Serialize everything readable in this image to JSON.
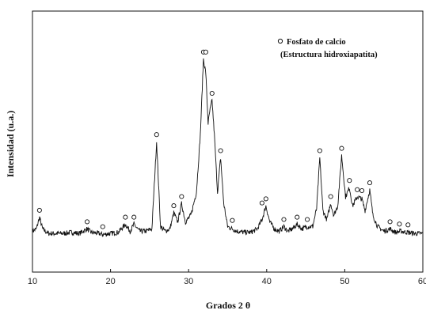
{
  "chart_data": {
    "type": "line",
    "title": "",
    "xlabel": "Grados 2 θ",
    "ylabel": "Intensidad (u.a.)",
    "xlim": [
      10,
      60
    ],
    "ylim": [
      0,
      100
    ],
    "x_ticks": [
      10,
      20,
      30,
      40,
      50,
      60
    ],
    "grid": false,
    "y_tick_labels": false,
    "legend": {
      "placement": "top-right",
      "marker": "open-circle",
      "lines": [
        "Fosfato de calcio",
        "(Estructura hidroxiapatita)"
      ]
    },
    "series": [
      {
        "name": "Fosfato de calcio (Estructura hidroxiapatita)",
        "color": "#111111",
        "baseline": 12,
        "points": [
          [
            10.0,
            13
          ],
          [
            10.5,
            14
          ],
          [
            10.9,
            19
          ],
          [
            11.3,
            14
          ],
          [
            12.0,
            12
          ],
          [
            13.0,
            12
          ],
          [
            14.0,
            12
          ],
          [
            15.0,
            12.5
          ],
          [
            16.0,
            12
          ],
          [
            17.0,
            14
          ],
          [
            17.5,
            12.5
          ],
          [
            18.5,
            12
          ],
          [
            19.0,
            11.5
          ],
          [
            20.0,
            12
          ],
          [
            21.0,
            12.5
          ],
          [
            21.9,
            16
          ],
          [
            22.5,
            13
          ],
          [
            23.0,
            16
          ],
          [
            23.7,
            13
          ],
          [
            24.5,
            13
          ],
          [
            25.3,
            14
          ],
          [
            25.9,
            52
          ],
          [
            26.4,
            15
          ],
          [
            27.0,
            13
          ],
          [
            27.6,
            14
          ],
          [
            28.1,
            21
          ],
          [
            28.6,
            17
          ],
          [
            29.1,
            25
          ],
          [
            29.6,
            17
          ],
          [
            30.3,
            20
          ],
          [
            31.0,
            30
          ],
          [
            31.5,
            55
          ],
          [
            31.9,
            88
          ],
          [
            32.2,
            82
          ],
          [
            32.5,
            60
          ],
          [
            32.7,
            65
          ],
          [
            33.0,
            70
          ],
          [
            33.3,
            55
          ],
          [
            33.7,
            30
          ],
          [
            34.1,
            45
          ],
          [
            34.5,
            25
          ],
          [
            35.0,
            15
          ],
          [
            35.6,
            14
          ],
          [
            36.2,
            13
          ],
          [
            37.0,
            12.5
          ],
          [
            38.0,
            12.5
          ],
          [
            38.8,
            14
          ],
          [
            39.4,
            18
          ],
          [
            39.9,
            24
          ],
          [
            40.4,
            17
          ],
          [
            41.0,
            14
          ],
          [
            41.6,
            13
          ],
          [
            42.2,
            15
          ],
          [
            42.7,
            13
          ],
          [
            43.3,
            14
          ],
          [
            43.9,
            16
          ],
          [
            44.5,
            14
          ],
          [
            45.2,
            15
          ],
          [
            45.9,
            15
          ],
          [
            46.4,
            23
          ],
          [
            46.8,
            45
          ],
          [
            47.2,
            22
          ],
          [
            47.7,
            18
          ],
          [
            48.2,
            25
          ],
          [
            48.6,
            20
          ],
          [
            49.1,
            24
          ],
          [
            49.6,
            46
          ],
          [
            50.1,
            28
          ],
          [
            50.6,
            32
          ],
          [
            51.0,
            24
          ],
          [
            51.6,
            28
          ],
          [
            52.2,
            27
          ],
          [
            52.6,
            22
          ],
          [
            53.2,
            31
          ],
          [
            53.6,
            20
          ],
          [
            54.2,
            15
          ],
          [
            55.0,
            13
          ],
          [
            55.8,
            14
          ],
          [
            56.5,
            12.5
          ],
          [
            57.2,
            13
          ],
          [
            58.0,
            12.5
          ],
          [
            59.0,
            12
          ],
          [
            60.0,
            12
          ]
        ]
      }
    ],
    "peak_markers": [
      10.9,
      17.0,
      19.0,
      21.9,
      23.0,
      25.9,
      28.1,
      29.1,
      31.9,
      32.2,
      33.0,
      34.1,
      35.6,
      39.4,
      39.9,
      42.2,
      43.9,
      45.2,
      46.8,
      48.2,
      49.6,
      50.6,
      51.6,
      52.2,
      53.2,
      55.8,
      57.0,
      58.1
    ]
  }
}
